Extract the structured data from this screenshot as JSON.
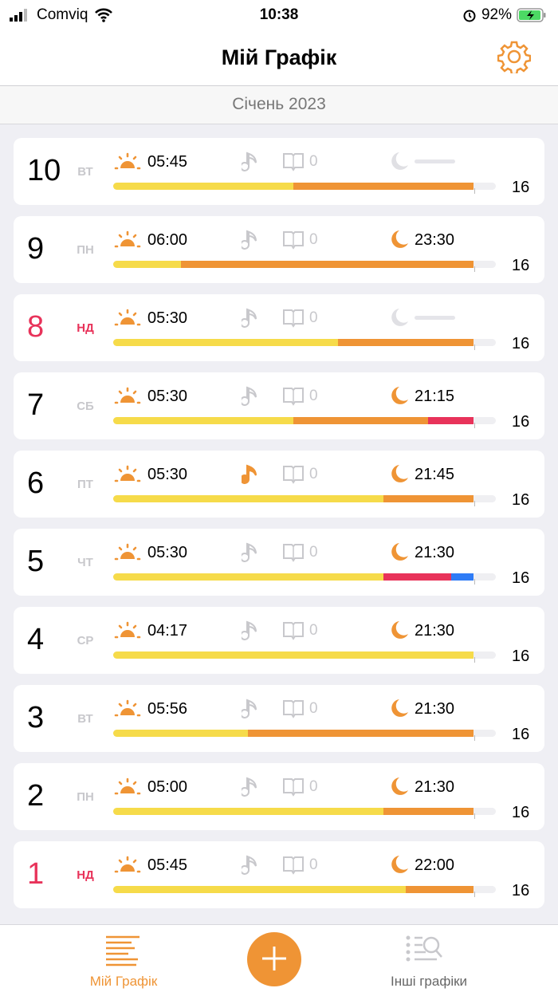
{
  "status_bar": {
    "carrier": "Comviq",
    "time": "10:38",
    "battery": "92%"
  },
  "header": {
    "title": "Мій Графік"
  },
  "month": "Січень 2023",
  "colors": {
    "accent": "#ef9435",
    "yellow": "#f6db4a",
    "orange": "#ef9435",
    "red": "#e8335a",
    "blue": "#2f7cf6"
  },
  "days": [
    {
      "day": "10",
      "dow": "ВТ",
      "weekend": false,
      "wake": "05:45",
      "music": false,
      "books": "0",
      "sleep": null,
      "segments_hours": [
        {
          "color": "yellow",
          "h": 8
        },
        {
          "color": "orange",
          "h": 8
        }
      ],
      "total": "16"
    },
    {
      "day": "9",
      "dow": "ПН",
      "weekend": false,
      "wake": "06:00",
      "music": false,
      "books": "0",
      "sleep": "23:30",
      "segments_hours": [
        {
          "color": "yellow",
          "h": 3
        },
        {
          "color": "orange",
          "h": 13
        }
      ],
      "total": "16"
    },
    {
      "day": "8",
      "dow": "НД",
      "weekend": true,
      "wake": "05:30",
      "music": false,
      "books": "0",
      "sleep": null,
      "segments_hours": [
        {
          "color": "yellow",
          "h": 10
        },
        {
          "color": "orange",
          "h": 6
        }
      ],
      "total": "16"
    },
    {
      "day": "7",
      "dow": "СБ",
      "weekend": false,
      "wake": "05:30",
      "music": false,
      "books": "0",
      "sleep": "21:15",
      "segments_hours": [
        {
          "color": "yellow",
          "h": 8
        },
        {
          "color": "orange",
          "h": 6
        },
        {
          "color": "red",
          "h": 2
        }
      ],
      "total": "16"
    },
    {
      "day": "6",
      "dow": "ПТ",
      "weekend": false,
      "wake": "05:30",
      "music": true,
      "books": "0",
      "sleep": "21:45",
      "segments_hours": [
        {
          "color": "yellow",
          "h": 12
        },
        {
          "color": "orange",
          "h": 4
        }
      ],
      "total": "16"
    },
    {
      "day": "5",
      "dow": "ЧТ",
      "weekend": false,
      "wake": "05:30",
      "music": false,
      "books": "0",
      "sleep": "21:30",
      "segments_hours": [
        {
          "color": "yellow",
          "h": 12
        },
        {
          "color": "red",
          "h": 3
        },
        {
          "color": "blue",
          "h": 1
        }
      ],
      "total": "16"
    },
    {
      "day": "4",
      "dow": "СР",
      "weekend": false,
      "wake": "04:17",
      "music": false,
      "books": "0",
      "sleep": "21:30",
      "segments_hours": [
        {
          "color": "yellow",
          "h": 16
        }
      ],
      "total": "16"
    },
    {
      "day": "3",
      "dow": "ВТ",
      "weekend": false,
      "wake": "05:56",
      "music": false,
      "books": "0",
      "sleep": "21:30",
      "segments_hours": [
        {
          "color": "yellow",
          "h": 6
        },
        {
          "color": "orange",
          "h": 10
        }
      ],
      "total": "16"
    },
    {
      "day": "2",
      "dow": "ПН",
      "weekend": false,
      "wake": "05:00",
      "music": false,
      "books": "0",
      "sleep": "21:30",
      "segments_hours": [
        {
          "color": "yellow",
          "h": 12
        },
        {
          "color": "orange",
          "h": 4
        }
      ],
      "total": "16"
    },
    {
      "day": "1",
      "dow": "НД",
      "weekend": true,
      "wake": "05:45",
      "music": false,
      "books": "0",
      "sleep": "22:00",
      "segments_hours": [
        {
          "color": "yellow",
          "h": 13
        },
        {
          "color": "orange",
          "h": 3
        }
      ],
      "total": "16"
    }
  ],
  "bar_max_hours": 17,
  "tabbar": {
    "my_schedule": "Мій Графік",
    "other_schedules": "Інші графіки",
    "add_icon": "plus-icon"
  }
}
